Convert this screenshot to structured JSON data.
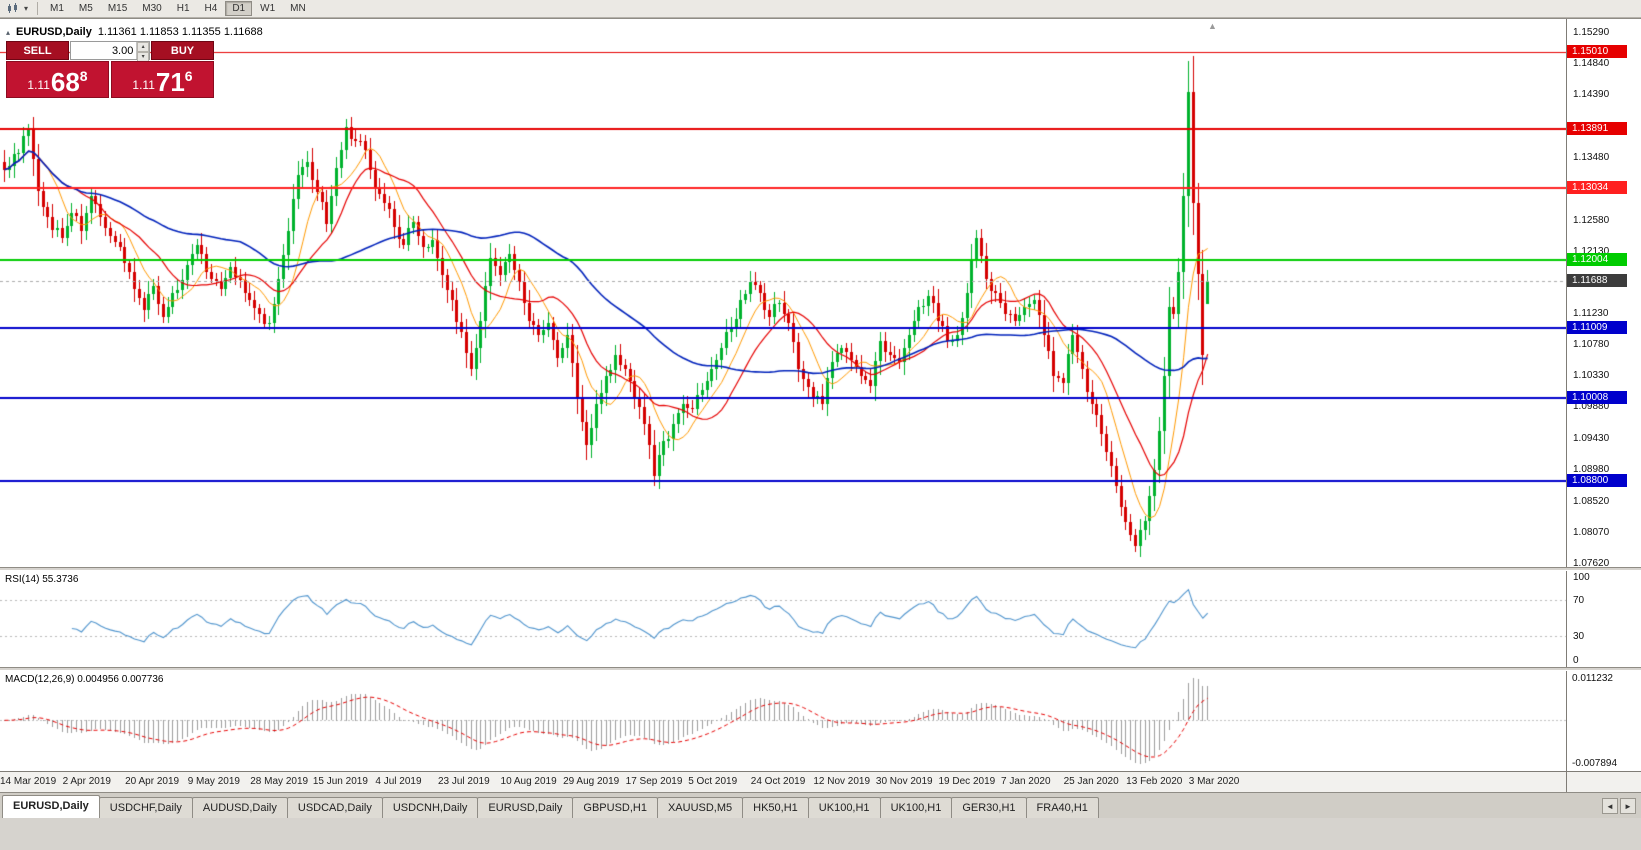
{
  "toolbar": {
    "timeframes": [
      "M1",
      "M5",
      "M15",
      "M30",
      "H1",
      "H4",
      "D1",
      "W1",
      "MN"
    ],
    "active_timeframe": "D1"
  },
  "chart": {
    "title_symbol": "EURUSD,Daily",
    "title_ohlc": "1.11361 1.11853 1.11355 1.11688"
  },
  "one_click": {
    "sell_label": "SELL",
    "buy_label": "BUY",
    "lots_value": "3.00",
    "sell_price": {
      "prefix": "1.11",
      "main": "68",
      "sup": "8"
    },
    "buy_price": {
      "prefix": "1.11",
      "main": "71",
      "sup": "6"
    },
    "button_color": "#a50f22",
    "price_color": "#c11330"
  },
  "indicators": {
    "rsi_label": "RSI(14) 55.3736",
    "rsi_ticks": [
      {
        "label": "100",
        "value": 100
      },
      {
        "label": "70",
        "value": 70
      },
      {
        "label": "30",
        "value": 30
      },
      {
        "label": "0",
        "value": 0
      }
    ],
    "macd_label": "MACD(12,26,9) 0.004956 0.007736",
    "macd_axis_top": "0.011232",
    "macd_axis_bottom": "-0.007894"
  },
  "tabs": {
    "items": [
      "EURUSD,Daily",
      "USDCHF,Daily",
      "AUDUSD,Daily",
      "USDCAD,Daily",
      "USDCNH,Daily",
      "EURUSD,Daily",
      "GBPUSD,H1",
      "XAUUSD,M5",
      "HK50,H1",
      "UK100,H1",
      "UK100,H1",
      "GER30,H1",
      "FRA40,H1"
    ],
    "active_index": 0
  },
  "icons": {
    "spinner_up": "▴",
    "spinner_down": "▾",
    "collapse_caret": "▴",
    "shift_marker": "▲",
    "tabs_scroll_left": "◄",
    "tabs_scroll_right": "►",
    "toolbar_caret": "▾"
  },
  "chart_data": {
    "type": "candlestick",
    "symbol": "EURUSD",
    "period": "Daily",
    "up_color": "#00b22d",
    "down_color": "#d40000",
    "y_axis": {
      "min": 1.0756,
      "max": 1.1548,
      "ticks": [
        1.1529,
        1.1484,
        1.1439,
        1.1393,
        1.1348,
        1.1303,
        1.1258,
        1.1213,
        1.1168,
        1.1123,
        1.1078,
        1.1033,
        1.0988,
        1.0943,
        1.0898,
        1.0852,
        1.0807,
        1.0762
      ]
    },
    "x_axis": {
      "labels": [
        "14 Mar 2019",
        "2 Apr 2019",
        "20 Apr 2019",
        "9 May 2019",
        "28 May 2019",
        "15 Jun 2019",
        "4 Jul 2019",
        "23 Jul 2019",
        "10 Aug 2019",
        "29 Aug 2019",
        "17 Sep 2019",
        "5 Oct 2019",
        "24 Oct 2019",
        "12 Nov 2019",
        "30 Nov 2019",
        "19 Dec 2019",
        "7 Jan 2020",
        "25 Jan 2020",
        "13 Feb 2020",
        "3 Mar 2020"
      ],
      "bar_step": 13
    },
    "bars_visible": 251,
    "last_ohlc": {
      "open": 1.11361,
      "high": 1.11853,
      "low": 1.11355,
      "close": 1.11688
    },
    "current_price": {
      "value": 1.11688,
      "badge_color": "#3c3c3c"
    },
    "levels": [
      {
        "price": 1.1501,
        "color": "#e60000",
        "width": 1
      },
      {
        "price": 1.13891,
        "color": "#e60000",
        "width": 2
      },
      {
        "price": 1.13034,
        "color": "#ff2020",
        "width": 2
      },
      {
        "price": 1.12004,
        "color": "#00cc00",
        "width": 2
      },
      {
        "price": 1.11009,
        "color": "#0000cc",
        "width": 2
      },
      {
        "price": 1.10008,
        "color": "#0000cc",
        "width": 2
      },
      {
        "price": 1.088,
        "color": "#0000cc",
        "width": 2
      }
    ],
    "moving_averages": [
      {
        "period": 8,
        "color": "#ff9900",
        "width": 1
      },
      {
        "period": 16,
        "color": "#e60000",
        "width": 1.2
      },
      {
        "period": 50,
        "color": "#0022bb",
        "width": 1.6
      }
    ],
    "rsi": {
      "period": 14,
      "current": 55.3736,
      "levels": [
        70,
        30
      ],
      "color": "#4f94cd"
    },
    "macd": {
      "fast": 12,
      "slow": 26,
      "signal": 9,
      "current_macd": 0.004956,
      "current_signal": 0.007736,
      "axis_top": 0.011232,
      "axis_bottom": -0.007894,
      "histogram_color": "#9c9c9c",
      "signal_color": "#e60000"
    },
    "close_anchors": [
      [
        0,
        1.133
      ],
      [
        3,
        1.1355
      ],
      [
        5,
        1.139
      ],
      [
        7,
        1.13
      ],
      [
        9,
        1.1262
      ],
      [
        12,
        1.1232
      ],
      [
        14,
        1.1268
      ],
      [
        16,
        1.1242
      ],
      [
        18,
        1.1292
      ],
      [
        20,
        1.1262
      ],
      [
        23,
        1.1225
      ],
      [
        26,
        1.1182
      ],
      [
        29,
        1.1128
      ],
      [
        31,
        1.1162
      ],
      [
        33,
        1.1118
      ],
      [
        35,
        1.1152
      ],
      [
        38,
        1.1192
      ],
      [
        40,
        1.1222
      ],
      [
        42,
        1.1182
      ],
      [
        45,
        1.1158
      ],
      [
        47,
        1.119
      ],
      [
        50,
        1.1152
      ],
      [
        53,
        1.1122
      ],
      [
        55,
        1.1108
      ],
      [
        57,
        1.1172
      ],
      [
        59,
        1.1242
      ],
      [
        61,
        1.1322
      ],
      [
        63,
        1.1342
      ],
      [
        65,
        1.1298
      ],
      [
        67,
        1.1252
      ],
      [
        69,
        1.1332
      ],
      [
        71,
        1.1392
      ],
      [
        73,
        1.1372
      ],
      [
        75,
        1.1358
      ],
      [
        77,
        1.1305
      ],
      [
        79,
        1.1282
      ],
      [
        81,
        1.1248
      ],
      [
        83,
        1.1222
      ],
      [
        85,
        1.1255
      ],
      [
        87,
        1.1218
      ],
      [
        89,
        1.1228
      ],
      [
        91,
        1.1178
      ],
      [
        93,
        1.1142
      ],
      [
        95,
        1.1095
      ],
      [
        97,
        1.1042
      ],
      [
        99,
        1.1112
      ],
      [
        101,
        1.1202
      ],
      [
        103,
        1.1178
      ],
      [
        105,
        1.1208
      ],
      [
        107,
        1.1168
      ],
      [
        109,
        1.1112
      ],
      [
        111,
        1.1092
      ],
      [
        113,
        1.1108
      ],
      [
        115,
        1.1058
      ],
      [
        117,
        1.1092
      ],
      [
        119,
        1.1002
      ],
      [
        121,
        1.0932
      ],
      [
        123,
        1.0992
      ],
      [
        125,
        1.1032
      ],
      [
        127,
        1.1062
      ],
      [
        129,
        1.1042
      ],
      [
        131,
        1.1002
      ],
      [
        133,
        1.0962
      ],
      [
        135,
        1.0888
      ],
      [
        137,
        1.0938
      ],
      [
        139,
        1.0962
      ],
      [
        141,
        1.0992
      ],
      [
        143,
        1.0985
      ],
      [
        145,
        1.1012
      ],
      [
        147,
        1.1042
      ],
      [
        149,
        1.1072
      ],
      [
        151,
        1.1102
      ],
      [
        153,
        1.1142
      ],
      [
        155,
        1.1168
      ],
      [
        157,
        1.1152
      ],
      [
        159,
        1.1118
      ],
      [
        161,
        1.1138
      ],
      [
        163,
        1.1108
      ],
      [
        165,
        1.1042
      ],
      [
        168,
        1.1002
      ],
      [
        170,
        1.0992
      ],
      [
        172,
        1.1052
      ],
      [
        174,
        1.1072
      ],
      [
        176,
        1.1055
      ],
      [
        178,
        1.1032
      ],
      [
        180,
        1.1018
      ],
      [
        182,
        1.1082
      ],
      [
        184,
        1.1062
      ],
      [
        186,
        1.1052
      ],
      [
        188,
        1.1092
      ],
      [
        190,
        1.1132
      ],
      [
        192,
        1.1148
      ],
      [
        194,
        1.1112
      ],
      [
        196,
        1.1082
      ],
      [
        198,
        1.1092
      ],
      [
        200,
        1.1152
      ],
      [
        202,
        1.1232
      ],
      [
        204,
        1.1172
      ],
      [
        206,
        1.1152
      ],
      [
        208,
        1.1122
      ],
      [
        210,
        1.1112
      ],
      [
        212,
        1.1132
      ],
      [
        214,
        1.1142
      ],
      [
        216,
        1.1092
      ],
      [
        218,
        1.1032
      ],
      [
        220,
        1.1022
      ],
      [
        222,
        1.1092
      ],
      [
        224,
        1.1042
      ],
      [
        226,
        1.0992
      ],
      [
        228,
        1.0948
      ],
      [
        230,
        1.0902
      ],
      [
        232,
        1.0842
      ],
      [
        235,
        1.0786
      ],
      [
        237,
        1.0822
      ],
      [
        238,
        1.0858
      ],
      [
        240,
        1.0952
      ],
      [
        241,
        1.1032
      ],
      [
        242,
        1.1132
      ],
      [
        243,
        1.1122
      ],
      [
        244,
        1.1182
      ],
      [
        245,
        1.1292
      ],
      [
        246,
        1.1442
      ],
      [
        247,
        1.1282
      ],
      [
        248,
        1.118
      ],
      [
        249,
        1.1062
      ],
      [
        250,
        1.11688
      ]
    ]
  }
}
